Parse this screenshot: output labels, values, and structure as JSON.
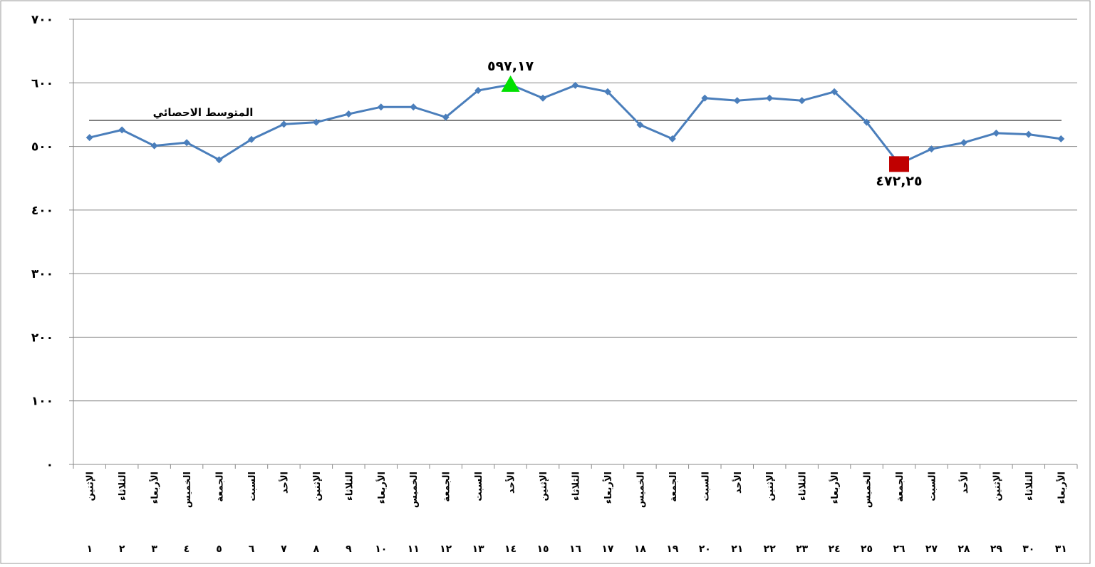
{
  "chart_data": {
    "type": "line",
    "categories": [
      "الإثنين",
      "الثلاثاء",
      "الأربعاء",
      "الخميس",
      "الجمعة",
      "السبت",
      "الأحد",
      "الإثنين",
      "الثلاثاء",
      "الأربعاء",
      "الخميس",
      "الجمعة",
      "السبت",
      "الأحد",
      "الإثنين",
      "الثلاثاء",
      "الأربعاء",
      "الخميس",
      "الجمعة",
      "السبت",
      "الأحد",
      "الإثنين",
      "الثلاثاء",
      "الأربعاء",
      "الخميس",
      "الجمعة",
      "السبت",
      "الأحد",
      "الإثنين",
      "الثلاثاء",
      "الأربعاء"
    ],
    "category_numbers": [
      "١",
      "٢",
      "٣",
      "٤",
      "٥",
      "٦",
      "٧",
      "٨",
      "٩",
      "١٠",
      "١١",
      "١٢",
      "١٣",
      "١٤",
      "١٥",
      "١٦",
      "١٧",
      "١٨",
      "١٩",
      "٢٠",
      "٢١",
      "٢٢",
      "٢٣",
      "٢٤",
      "٢٥",
      "٢٦",
      "٢٧",
      "٢٨",
      "٢٩",
      "٣٠",
      "٣١"
    ],
    "values": [
      514,
      526,
      501,
      506,
      479,
      511,
      535,
      538,
      551,
      562,
      562,
      546,
      588,
      597.17,
      576,
      596,
      586,
      534,
      512,
      576,
      572,
      576,
      572,
      586,
      538,
      472.25,
      496,
      506,
      521,
      519,
      512
    ],
    "value_labels": [
      null,
      null,
      null,
      null,
      null,
      null,
      null,
      null,
      null,
      null,
      null,
      null,
      null,
      "٥٩٧,١٧",
      null,
      null,
      null,
      null,
      null,
      null,
      null,
      null,
      null,
      null,
      null,
      "٤٧٢,٢٥",
      null,
      null,
      null,
      null,
      null
    ],
    "color": "#4a7ebb",
    "max_color": "#00e000",
    "min_color": "#c00000",
    "average": 541,
    "average_label": "المتوسط الاحصائي",
    "ylim": [
      0,
      700
    ],
    "yticks": [
      {
        "value": 0,
        "label": "٠"
      },
      {
        "value": 100,
        "label": "١٠٠"
      },
      {
        "value": 200,
        "label": "٢٠٠"
      },
      {
        "value": 300,
        "label": "٣٠٠"
      },
      {
        "value": 400,
        "label": "٤٠٠"
      },
      {
        "value": 500,
        "label": "٥٠٠"
      },
      {
        "value": 600,
        "label": "٦٠٠"
      },
      {
        "value": 700,
        "label": "٧٠٠"
      }
    ],
    "grid": true
  }
}
